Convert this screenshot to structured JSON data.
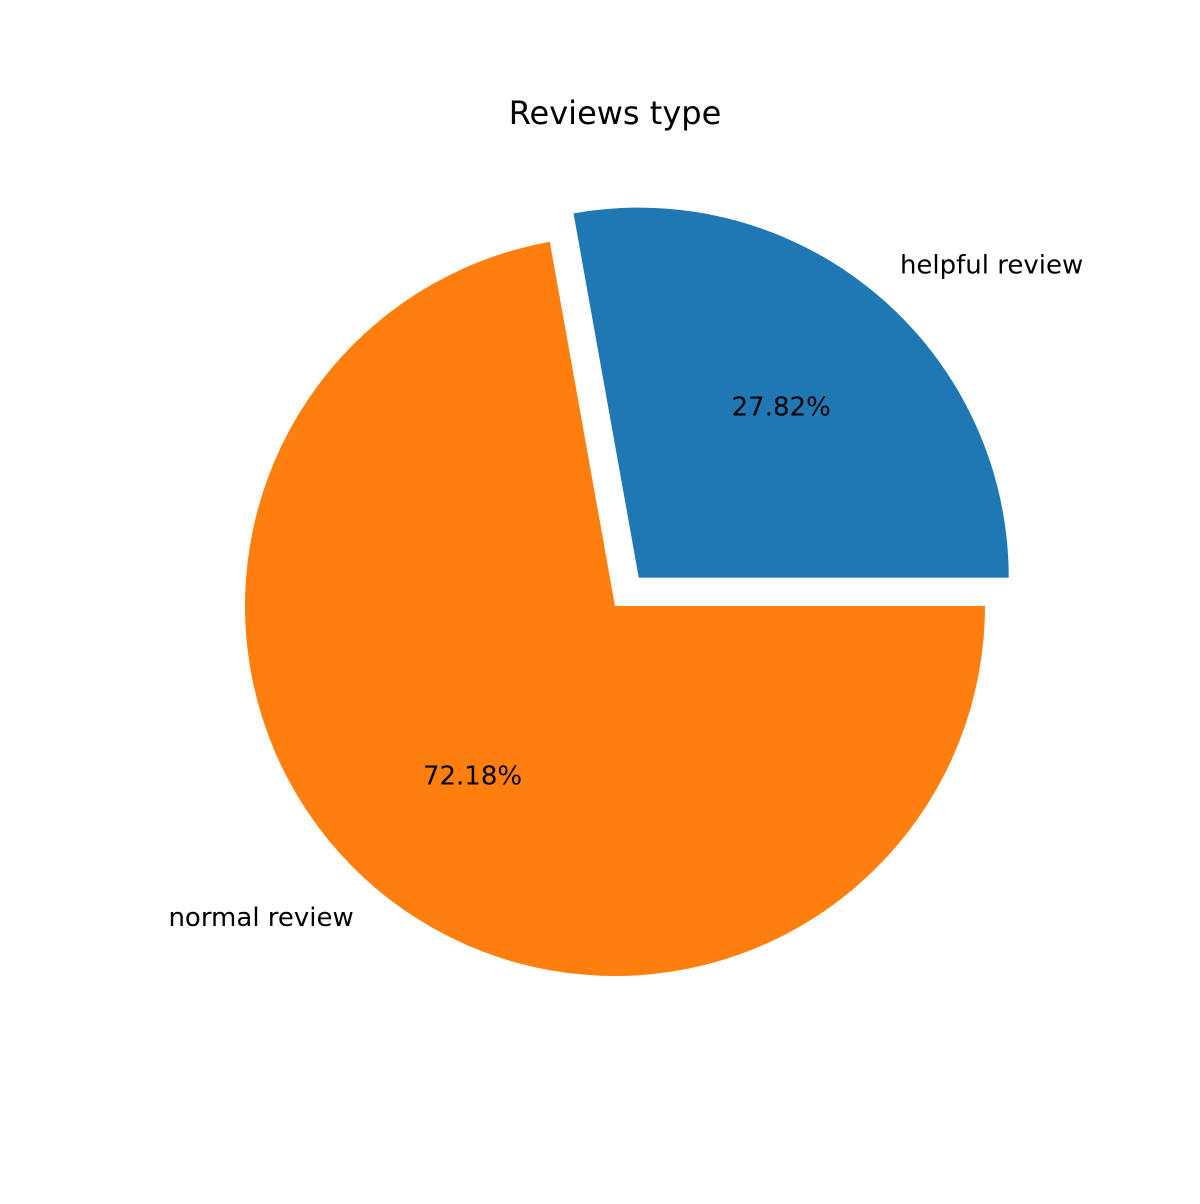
{
  "chart_data": {
    "type": "pie",
    "title": "Reviews type",
    "categories": [
      "helpful review",
      "normal review"
    ],
    "values": [
      27.82,
      72.18
    ],
    "percent_labels": [
      "27.82%",
      "72.18%"
    ],
    "colors": [
      "#1f77b4",
      "#ff7f0e"
    ],
    "exploded": [
      true,
      false
    ],
    "start_angle_degrees": 0,
    "direction": "counterclockwise",
    "legend": "none"
  }
}
